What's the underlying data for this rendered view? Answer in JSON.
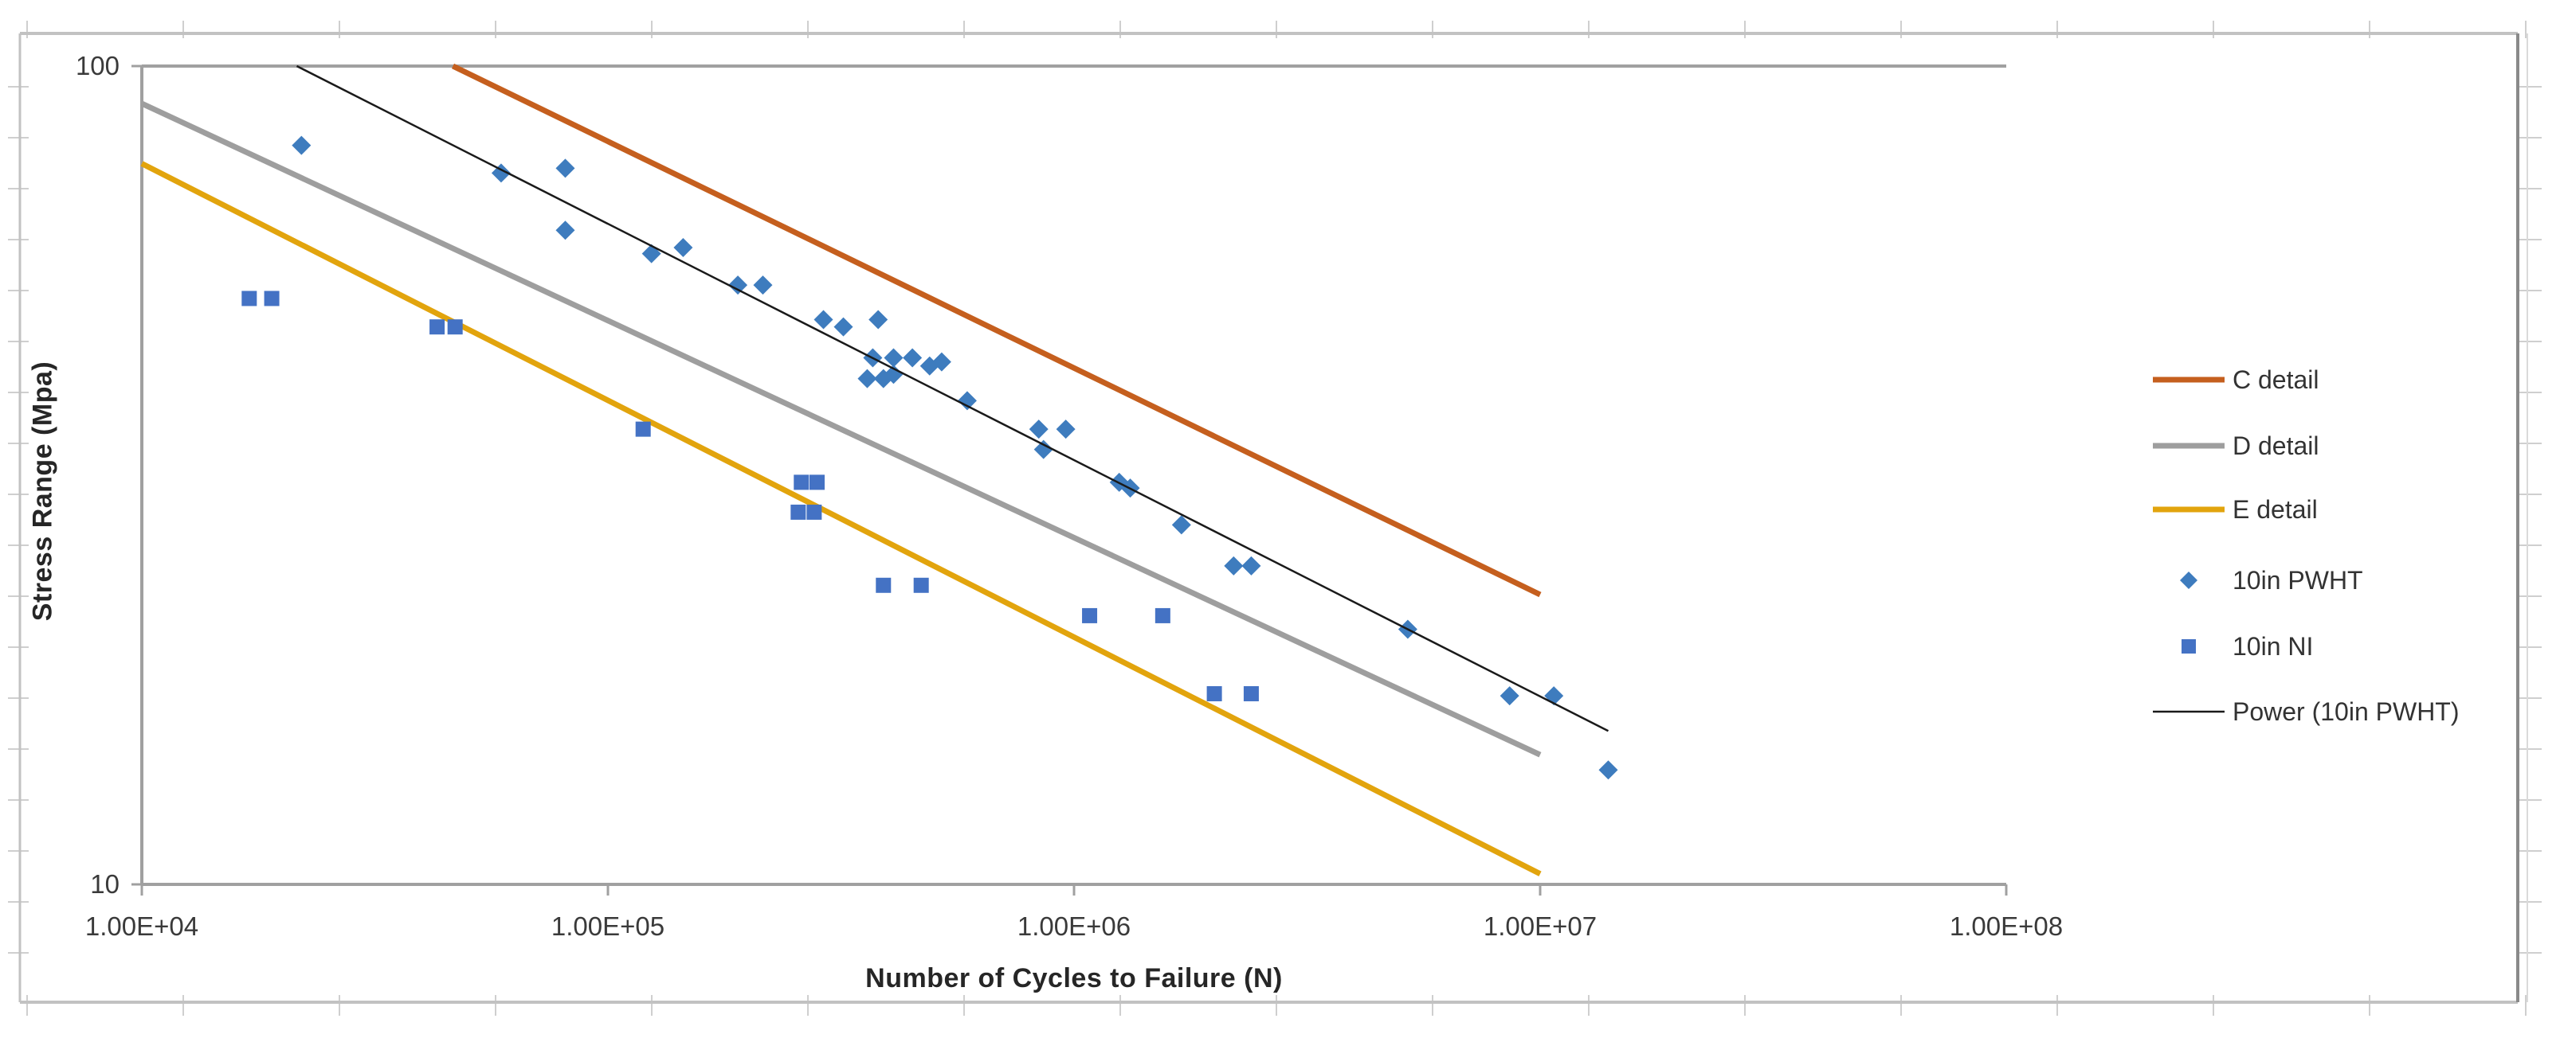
{
  "chart_data": {
    "type": "scatter",
    "title": "",
    "xlabel": "Number of Cycles to Failure (N)",
    "ylabel": "Stress Range (Mpa)",
    "x_scale": "log",
    "y_scale": "log",
    "xlim": [
      10000,
      100000000
    ],
    "ylim": [
      10,
      100
    ],
    "grid": false,
    "legend_position": "right",
    "x_ticks": [
      10000,
      100000,
      1000000,
      10000000,
      100000000
    ],
    "x_tick_labels": [
      "1.00E+04",
      "1.00E+05",
      "1.00E+06",
      "1.00E+07",
      "1.00E+08"
    ],
    "y_ticks": [
      10,
      100
    ],
    "y_tick_labels": [
      "10",
      "100"
    ],
    "series": [
      {
        "name": "C detail",
        "type": "line",
        "color": "#C55F1E",
        "line_width": 7,
        "points": [
          [
            46500,
            100
          ],
          [
            10000000,
            22.6
          ]
        ]
      },
      {
        "name": "D detail",
        "type": "line",
        "color": "#9E9E9E",
        "line_width": 7,
        "points": [
          [
            10000,
            90
          ],
          [
            10000000,
            14.4
          ]
        ]
      },
      {
        "name": "E detail",
        "type": "line",
        "color": "#E2A40D",
        "line_width": 7,
        "points": [
          [
            10000,
            76
          ],
          [
            10000000,
            10.3
          ]
        ]
      },
      {
        "name": "10in PWHT",
        "type": "scatter",
        "marker": "diamond",
        "color": "#3E7CBE",
        "points": [
          [
            22000,
            80
          ],
          [
            59000,
            74
          ],
          [
            81000,
            75
          ],
          [
            81000,
            63
          ],
          [
            124000,
            59
          ],
          [
            145000,
            60
          ],
          [
            190000,
            54
          ],
          [
            215000,
            54
          ],
          [
            290000,
            49
          ],
          [
            320000,
            48
          ],
          [
            380000,
            49
          ],
          [
            360000,
            41.5
          ],
          [
            370000,
            44
          ],
          [
            390000,
            41.5
          ],
          [
            410000,
            44
          ],
          [
            410000,
            42
          ],
          [
            450000,
            44
          ],
          [
            490000,
            43
          ],
          [
            520000,
            43.5
          ],
          [
            590000,
            39
          ],
          [
            840000,
            36
          ],
          [
            960000,
            36
          ],
          [
            860000,
            34
          ],
          [
            1250000,
            31
          ],
          [
            1320000,
            30.5
          ],
          [
            1700000,
            27.5
          ],
          [
            2200000,
            24.5
          ],
          [
            2400000,
            24.5
          ],
          [
            5200000,
            20.5
          ],
          [
            8600000,
            17
          ],
          [
            10700000,
            17
          ],
          [
            14000000,
            13.8
          ]
        ]
      },
      {
        "name": "10in NI",
        "type": "scatter",
        "marker": "square",
        "color": "#4472C4",
        "points": [
          [
            17000,
            52
          ],
          [
            19000,
            52
          ],
          [
            43000,
            48
          ],
          [
            47000,
            48
          ],
          [
            119000,
            36
          ],
          [
            260000,
            31
          ],
          [
            281000,
            31
          ],
          [
            256000,
            28.5
          ],
          [
            277000,
            28.5
          ],
          [
            390000,
            23.2
          ],
          [
            470000,
            23.2
          ],
          [
            1080000,
            21.3
          ],
          [
            1550000,
            21.3
          ],
          [
            2000000,
            17.1
          ],
          [
            2400000,
            17.1
          ]
        ]
      },
      {
        "name": "Power (10in PWHT)",
        "type": "line",
        "color": "#1a1a1a",
        "line_width": 2.5,
        "points": [
          [
            21500,
            100
          ],
          [
            14000000,
            15.4
          ]
        ]
      }
    ]
  },
  "legend": {
    "items": [
      {
        "label": "C detail",
        "swatch": "line",
        "color": "#C55F1E"
      },
      {
        "label": "D detail",
        "swatch": "line",
        "color": "#9E9E9E"
      },
      {
        "label": "E detail",
        "swatch": "line",
        "color": "#E2A40D"
      },
      {
        "label": "10in PWHT",
        "swatch": "diamond",
        "color": "#3E7CBE"
      },
      {
        "label": "10in NI",
        "swatch": "square",
        "color": "#4472C4"
      },
      {
        "label": "Power (10in PWHT)",
        "swatch": "thin-line",
        "color": "#1a1a1a"
      }
    ]
  },
  "colors": {
    "axis": "#A0A0A0",
    "tick_label": "#3a3a3a",
    "sheet_grid": "#CFCFCF",
    "chart_border": "#C2C2C2",
    "chart_border_right": "#8A8A8A",
    "background": "#FFFFFF"
  }
}
